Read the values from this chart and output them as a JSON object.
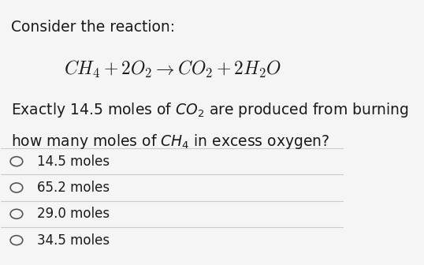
{
  "background_color": "#f5f5f5",
  "title_line": "Consider the reaction:",
  "question_line1": "Exactly 14.5 moles of $CO_2$ are produced from burning",
  "question_line2": "how many moles of $CH_4$ in excess oxygen?",
  "options": [
    "14.5 moles",
    "65.2 moles",
    "29.0 moles",
    "34.5 moles"
  ],
  "option_circle_color": "#555555",
  "text_color": "#1a1a1a",
  "separator_color": "#cccccc",
  "title_fontsize": 13.5,
  "equation_fontsize": 17,
  "question_fontsize": 13.5,
  "option_fontsize": 12
}
